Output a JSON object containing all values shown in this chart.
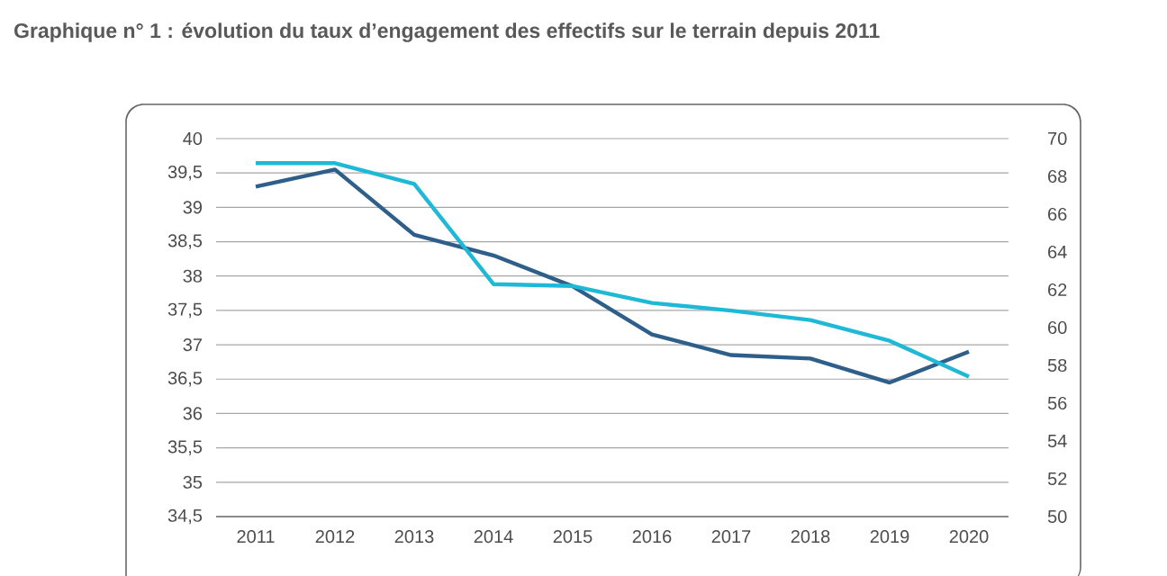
{
  "chart_data": {
    "type": "line",
    "title": "Graphique n° 1 : évolution du taux d’engagement des effectifs sur le terrain depuis 2011",
    "categories": [
      "2011",
      "2012",
      "2013",
      "2014",
      "2015",
      "2016",
      "2017",
      "2018",
      "2019",
      "2020"
    ],
    "series": [
      {
        "color": "#2e5f8a",
        "values": [
          39.3,
          39.55,
          38.6,
          38.3,
          37.85,
          37.15,
          36.85,
          36.8,
          36.45,
          36.9
        ]
      },
      {
        "color": "#1fb8d6",
        "axis": "y2",
        "values": [
          68.7,
          68.7,
          67.6,
          62.3,
          62.2,
          61.3,
          60.9,
          60.4,
          59.3,
          57.4
        ]
      }
    ],
    "ylim": [
      34.5,
      40
    ],
    "yticks": [
      {
        "value": 34.5,
        "label": "34,5"
      },
      35,
      {
        "value": 35.5,
        "label": "35,5"
      },
      36,
      {
        "value": 36.5,
        "label": "36,5"
      },
      37,
      {
        "value": 37.5,
        "label": "37,5"
      },
      38,
      {
        "value": 38.5,
        "label": "38,5"
      },
      39,
      {
        "value": 39.5,
        "label": "39,5"
      },
      40
    ],
    "y2lim": [
      50,
      70
    ],
    "y2ticks": [
      50,
      52,
      54,
      56,
      58,
      60,
      62,
      64,
      66,
      68,
      70
    ],
    "grid": "y",
    "legend": false,
    "marker": "none",
    "line_style": "solid"
  }
}
